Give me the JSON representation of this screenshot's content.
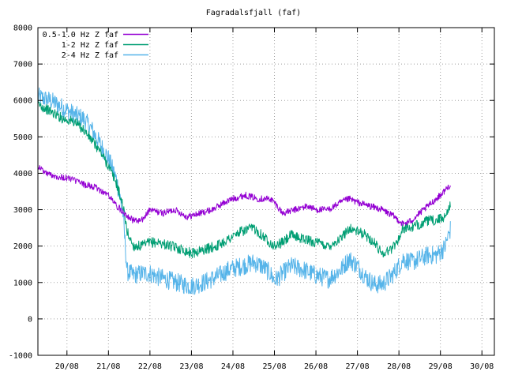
{
  "chart_data": {
    "type": "line",
    "title": "Fagradalsfjall (faf)",
    "xlabel": "",
    "ylabel": "",
    "grid": true,
    "legend_position": "top-left",
    "ylim": [
      -1000,
      8000
    ],
    "yticks": [
      -1000,
      0,
      1000,
      2000,
      3000,
      4000,
      5000,
      6000,
      7000,
      8000
    ],
    "xlim": [
      19.3,
      30.3
    ],
    "xticks": [
      {
        "x": 20,
        "label": "20/08"
      },
      {
        "x": 21,
        "label": "21/08"
      },
      {
        "x": 22,
        "label": "22/08"
      },
      {
        "x": 23,
        "label": "23/08"
      },
      {
        "x": 24,
        "label": "24/08"
      },
      {
        "x": 25,
        "label": "25/08"
      },
      {
        "x": 26,
        "label": "26/08"
      },
      {
        "x": 27,
        "label": "27/08"
      },
      {
        "x": 28,
        "label": "28/08"
      },
      {
        "x": 29,
        "label": "29/08"
      },
      {
        "x": 30,
        "label": "30/08"
      }
    ],
    "series": [
      {
        "name": "2-4 Hz Z faf",
        "color": "#56b4e9",
        "x": [
          19.3,
          19.6,
          19.9,
          20.2,
          20.4,
          20.6,
          20.8,
          21.0,
          21.2,
          21.35,
          21.45,
          21.6,
          21.8,
          22.0,
          22.2,
          22.5,
          22.8,
          23.0,
          23.3,
          23.6,
          23.9,
          24.2,
          24.5,
          24.7,
          24.9,
          25.0,
          25.2,
          25.4,
          25.7,
          26.0,
          26.3,
          26.6,
          26.8,
          27.0,
          27.2,
          27.4,
          27.6,
          27.8,
          28.0,
          28.1,
          28.3,
          28.5,
          28.7,
          28.9,
          29.1,
          29.25
        ],
        "y": [
          6100,
          6000,
          5800,
          5600,
          5500,
          5200,
          4800,
          4400,
          3800,
          2900,
          1300,
          1200,
          1250,
          1250,
          1150,
          1050,
          950,
          900,
          1000,
          1150,
          1350,
          1450,
          1550,
          1450,
          1250,
          1050,
          1250,
          1450,
          1350,
          1200,
          1100,
          1350,
          1650,
          1450,
          1150,
          950,
          950,
          1150,
          1450,
          1650,
          1550,
          1650,
          1750,
          1750,
          1950,
          2500
        ]
      },
      {
        "name": "1-2 Hz Z faf",
        "color": "#009e73",
        "x": [
          19.3,
          19.6,
          19.9,
          20.2,
          20.4,
          20.6,
          20.8,
          21.0,
          21.2,
          21.35,
          21.45,
          21.6,
          21.8,
          22.0,
          22.2,
          22.5,
          22.8,
          23.0,
          23.3,
          23.6,
          23.9,
          24.2,
          24.5,
          24.7,
          24.9,
          25.0,
          25.2,
          25.4,
          25.7,
          26.0,
          26.3,
          26.6,
          26.8,
          27.0,
          27.2,
          27.4,
          27.6,
          27.8,
          28.0,
          28.1,
          28.3,
          28.5,
          28.7,
          28.9,
          29.1,
          29.25
        ],
        "y": [
          5900,
          5700,
          5500,
          5400,
          5200,
          4900,
          4600,
          4200,
          3700,
          3100,
          2400,
          2000,
          2000,
          2100,
          2100,
          2000,
          1900,
          1800,
          1900,
          2000,
          2200,
          2400,
          2500,
          2300,
          2100,
          2000,
          2100,
          2300,
          2200,
          2100,
          2000,
          2200,
          2500,
          2400,
          2300,
          2100,
          1800,
          1900,
          2200,
          2500,
          2500,
          2600,
          2700,
          2700,
          2800,
          3200
        ]
      },
      {
        "name": "0.5-1.0 Hz Z faf",
        "color": "#9400d3",
        "x": [
          19.3,
          19.5,
          19.8,
          20.1,
          20.4,
          20.7,
          21.0,
          21.2,
          21.4,
          21.6,
          21.8,
          22.0,
          22.3,
          22.6,
          22.9,
          23.2,
          23.5,
          23.8,
          24.0,
          24.3,
          24.6,
          24.9,
          25.0,
          25.2,
          25.5,
          25.8,
          26.0,
          26.3,
          26.6,
          26.8,
          27.0,
          27.3,
          27.6,
          27.9,
          28.1,
          28.3,
          28.5,
          28.8,
          29.0,
          29.25
        ],
        "y": [
          4200,
          4000,
          3900,
          3850,
          3700,
          3600,
          3400,
          3100,
          2900,
          2700,
          2700,
          3000,
          2900,
          3000,
          2800,
          2900,
          3000,
          3200,
          3300,
          3400,
          3300,
          3300,
          3200,
          2900,
          3000,
          3100,
          3000,
          3000,
          3200,
          3300,
          3200,
          3100,
          3000,
          2800,
          2600,
          2700,
          2900,
          3200,
          3400,
          3700
        ]
      }
    ]
  }
}
